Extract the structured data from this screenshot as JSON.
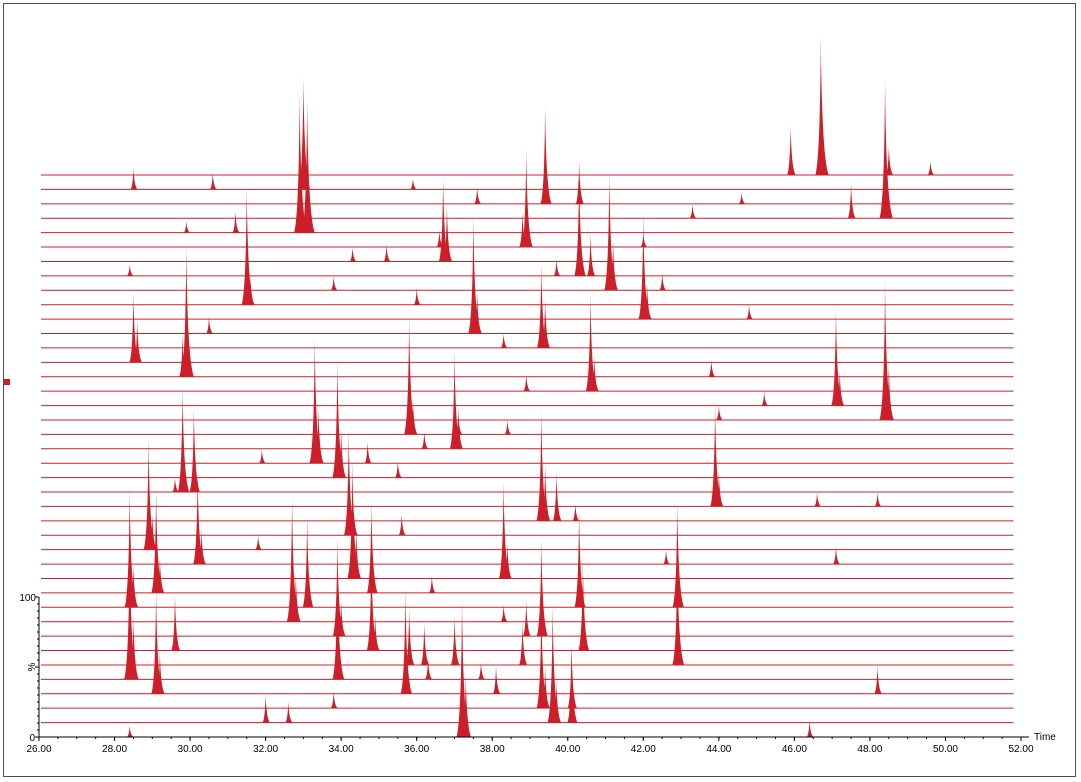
{
  "chart_data": {
    "type": "area",
    "kind": "stacked-chromatogram",
    "x_unit_label": "Time",
    "y_unit_label": "%",
    "y_tick_labels": [
      "100",
      "0"
    ],
    "xlim": [
      26,
      52
    ],
    "ylim": [
      0,
      100
    ],
    "x_ticks": [
      "26.00",
      "28.00",
      "30.00",
      "32.00",
      "34.00",
      "36.00",
      "38.00",
      "40.00",
      "42.00",
      "44.00",
      "46.00",
      "48.00",
      "50.00",
      "52.00"
    ],
    "trace_end": 51.8,
    "trace_color": "#cc1f2a",
    "trace_count": 40,
    "traces": [
      {
        "peaks": [
          [
            46.7,
            100
          ],
          [
            45.9,
            35
          ],
          [
            48.5,
            20
          ],
          [
            49.6,
            10
          ]
        ]
      },
      {
        "peaks": [
          [
            33.0,
            80
          ],
          [
            28.5,
            15
          ],
          [
            30.6,
            12
          ],
          [
            35.9,
            8
          ]
        ]
      },
      {
        "peaks": [
          [
            39.4,
            70
          ],
          [
            40.3,
            30
          ],
          [
            37.6,
            12
          ],
          [
            44.6,
            8
          ]
        ]
      },
      {
        "peaks": [
          [
            48.4,
            100
          ],
          [
            47.5,
            25
          ],
          [
            43.3,
            10
          ]
        ]
      },
      {
        "peaks": [
          [
            32.9,
            100
          ],
          [
            33.1,
            95
          ],
          [
            31.2,
            15
          ],
          [
            29.9,
            8
          ]
        ]
      },
      {
        "peaks": [
          [
            38.9,
            70
          ],
          [
            38.8,
            25
          ],
          [
            36.6,
            12
          ],
          [
            42.0,
            10
          ]
        ]
      },
      {
        "peaks": [
          [
            36.7,
            60
          ],
          [
            36.8,
            40
          ],
          [
            35.2,
            12
          ],
          [
            34.3,
            10
          ]
        ]
      },
      {
        "peaks": [
          [
            40.3,
            75
          ],
          [
            40.6,
            30
          ],
          [
            39.7,
            12
          ],
          [
            28.4,
            8
          ]
        ]
      },
      {
        "peaks": [
          [
            41.1,
            85
          ],
          [
            41.2,
            35
          ],
          [
            42.5,
            12
          ],
          [
            33.8,
            10
          ]
        ]
      },
      {
        "peaks": [
          [
            31.5,
            85
          ],
          [
            31.6,
            20
          ],
          [
            36.0,
            12
          ]
        ]
      },
      {
        "peaks": [
          [
            42.0,
            75
          ],
          [
            42.1,
            25
          ],
          [
            44.8,
            10
          ]
        ]
      },
      {
        "peaks": [
          [
            30.5,
            12
          ],
          [
            37.5,
            85
          ],
          [
            37.6,
            30
          ]
        ]
      },
      {
        "peaks": [
          [
            39.3,
            60
          ],
          [
            39.4,
            35
          ],
          [
            38.3,
            10
          ]
        ]
      },
      {
        "peaks": [
          [
            28.5,
            50
          ],
          [
            28.6,
            30
          ],
          [
            29.9,
            12
          ]
        ]
      },
      {
        "peaks": [
          [
            29.9,
            95
          ],
          [
            29.8,
            30
          ],
          [
            43.8,
            12
          ]
        ]
      },
      {
        "peaks": [
          [
            40.6,
            70
          ],
          [
            40.7,
            25
          ],
          [
            38.9,
            12
          ]
        ]
      },
      {
        "peaks": [
          [
            47.1,
            70
          ],
          [
            47.2,
            25
          ],
          [
            45.2,
            10
          ]
        ]
      },
      {
        "peaks": [
          [
            48.4,
            100
          ],
          [
            48.5,
            40
          ],
          [
            44.0,
            10
          ]
        ]
      },
      {
        "peaks": [
          [
            35.8,
            85
          ],
          [
            35.9,
            25
          ],
          [
            37.1,
            15
          ],
          [
            38.4,
            10
          ]
        ]
      },
      {
        "peaks": [
          [
            37.0,
            70
          ],
          [
            37.1,
            30
          ],
          [
            36.2,
            12
          ]
        ]
      },
      {
        "peaks": [
          [
            33.3,
            90
          ],
          [
            33.4,
            40
          ],
          [
            34.7,
            15
          ],
          [
            31.9,
            10
          ]
        ]
      },
      {
        "peaks": [
          [
            33.9,
            85
          ],
          [
            34.0,
            35
          ],
          [
            35.5,
            12
          ]
        ]
      },
      {
        "peaks": [
          [
            29.8,
            75
          ],
          [
            30.1,
            60
          ],
          [
            29.6,
            10
          ]
        ]
      },
      {
        "peaks": [
          [
            43.9,
            75
          ],
          [
            44.0,
            25
          ],
          [
            46.6,
            10
          ],
          [
            48.2,
            10
          ]
        ]
      },
      {
        "peaks": [
          [
            39.3,
            80
          ],
          [
            39.4,
            40
          ],
          [
            39.7,
            35
          ],
          [
            40.2,
            12
          ]
        ]
      },
      {
        "peaks": [
          [
            34.2,
            75
          ],
          [
            34.3,
            40
          ],
          [
            35.6,
            15
          ]
        ]
      },
      {
        "peaks": [
          [
            28.9,
            80
          ],
          [
            29.0,
            25
          ],
          [
            30.2,
            15
          ],
          [
            31.8,
            10
          ]
        ]
      },
      {
        "peaks": [
          [
            30.2,
            65
          ],
          [
            30.3,
            25
          ],
          [
            47.1,
            12
          ],
          [
            42.6,
            10
          ]
        ]
      },
      {
        "peaks": [
          [
            34.3,
            85
          ],
          [
            34.4,
            35
          ],
          [
            38.3,
            70
          ],
          [
            38.4,
            25
          ]
        ]
      },
      {
        "peaks": [
          [
            29.1,
            75
          ],
          [
            29.2,
            25
          ],
          [
            34.8,
            65
          ],
          [
            36.4,
            12
          ]
        ]
      },
      {
        "peaks": [
          [
            28.4,
            85
          ],
          [
            28.5,
            30
          ],
          [
            33.1,
            65
          ],
          [
            40.3,
            70
          ],
          [
            42.9,
            75
          ]
        ]
      },
      {
        "peaks": [
          [
            32.7,
            90
          ],
          [
            32.8,
            35
          ],
          [
            38.3,
            12
          ]
        ]
      },
      {
        "peaks": [
          [
            33.9,
            70
          ],
          [
            34.0,
            25
          ],
          [
            38.9,
            25
          ],
          [
            39.3,
            70
          ]
        ]
      },
      {
        "peaks": [
          [
            29.6,
            40
          ],
          [
            34.8,
            70
          ],
          [
            34.9,
            25
          ],
          [
            40.4,
            65
          ]
        ]
      },
      {
        "peaks": [
          [
            35.8,
            40
          ],
          [
            36.2,
            30
          ],
          [
            37.0,
            35
          ],
          [
            38.8,
            30
          ],
          [
            42.9,
            80
          ]
        ]
      },
      {
        "peaks": [
          [
            28.4,
            100
          ],
          [
            28.5,
            45
          ],
          [
            33.9,
            80
          ],
          [
            36.3,
            15
          ],
          [
            37.7,
            12
          ]
        ]
      },
      {
        "peaks": [
          [
            29.1,
            75
          ],
          [
            29.2,
            30
          ],
          [
            35.7,
            75
          ],
          [
            38.1,
            20
          ],
          [
            48.2,
            20
          ]
        ]
      },
      {
        "peaks": [
          [
            39.3,
            75
          ],
          [
            39.4,
            30
          ],
          [
            40.1,
            45
          ],
          [
            33.8,
            12
          ]
        ]
      },
      {
        "peaks": [
          [
            32.0,
            20
          ],
          [
            32.6,
            15
          ],
          [
            39.6,
            85
          ],
          [
            39.7,
            30
          ],
          [
            40.1,
            55
          ]
        ]
      },
      {
        "peaks": [
          [
            37.2,
            100
          ],
          [
            37.3,
            45
          ],
          [
            46.4,
            12
          ],
          [
            28.4,
            8
          ]
        ]
      }
    ]
  }
}
